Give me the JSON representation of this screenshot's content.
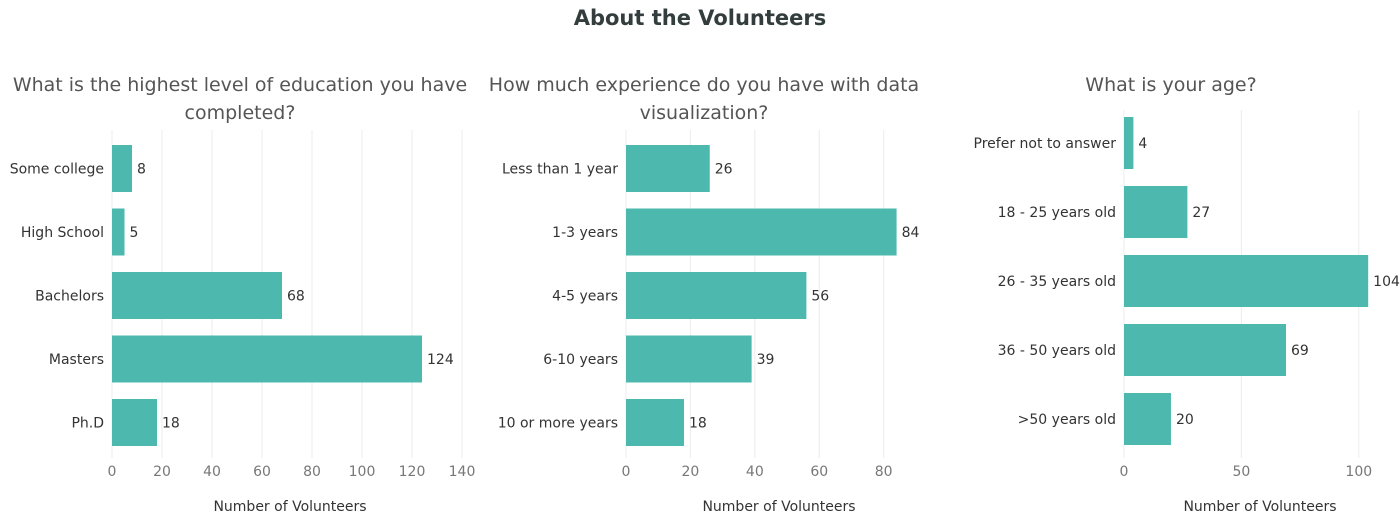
{
  "page": {
    "title": "About the Volunteers",
    "colors": {
      "bar": "#4db8ad",
      "title": "#333d3d",
      "grid": "#ececec"
    }
  },
  "chart_data": [
    {
      "type": "bar",
      "orientation": "horizontal",
      "title_lines": [
        "What is the highest level of education you have",
        "completed?"
      ],
      "categories": [
        "Some college",
        "High School",
        "Bachelors",
        "Masters",
        "Ph.D"
      ],
      "values": [
        8,
        5,
        68,
        124,
        18
      ],
      "xlabel": "Number of Volunteers",
      "xlim": [
        0,
        140
      ],
      "xticks": [
        0,
        20,
        40,
        60,
        80,
        100,
        120,
        140
      ],
      "grid": true
    },
    {
      "type": "bar",
      "orientation": "horizontal",
      "title_lines": [
        "How much experience do you have with data",
        "visualization?"
      ],
      "categories": [
        "Less than 1 year",
        "1-3 years",
        "4-5 years",
        "6-10 years",
        "10 or more years"
      ],
      "values": [
        26,
        84,
        56,
        39,
        18
      ],
      "xlabel": "Number of Volunteers",
      "xlim": [
        0,
        95
      ],
      "xticks": [
        0,
        20,
        40,
        60,
        80
      ],
      "grid": true
    },
    {
      "type": "bar",
      "orientation": "horizontal",
      "title_lines": [
        "What is your age?"
      ],
      "categories": [
        "Prefer not to answer",
        "18 - 25 years old",
        "26 - 35 years old",
        "36 - 50 years old",
        ">50 years old"
      ],
      "values": [
        4,
        27,
        104,
        69,
        20
      ],
      "xlabel": "Number of Volunteers",
      "xlim": [
        0,
        115
      ],
      "xticks": [
        0,
        50,
        100
      ],
      "grid": true
    }
  ]
}
